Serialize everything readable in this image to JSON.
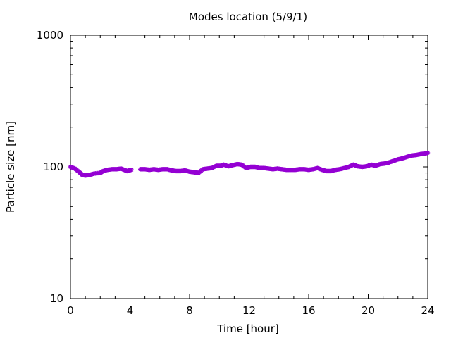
{
  "chart_data": {
    "type": "scatter",
    "title": "Modes location (5/9/1)",
    "xlabel": "Time [hour]",
    "ylabel": "Particle size [nm]",
    "xlim": [
      0,
      24
    ],
    "ylim": [
      10,
      1000
    ],
    "yscale": "log",
    "grid": false,
    "legend": "none",
    "x_ticks": [
      0,
      4,
      8,
      12,
      16,
      20,
      24
    ],
    "x_tick_labels": [
      "0",
      "4",
      "8",
      "12",
      "16",
      "20",
      "24"
    ],
    "y_ticks": [
      10,
      100,
      1000
    ],
    "y_tick_labels": [
      "10",
      "100",
      "1000"
    ],
    "series": [
      {
        "color": "#9400d3",
        "marker": "star",
        "x": [
          0.0,
          0.3,
          0.6,
          0.8,
          1.0,
          1.3,
          1.6,
          2.0,
          2.2,
          2.5,
          2.8,
          3.1,
          3.4,
          3.6,
          3.8,
          4.1,
          4.7,
          5.0,
          5.3,
          5.6,
          5.9,
          6.2,
          6.5,
          6.8,
          7.1,
          7.4,
          7.7,
          8.0,
          8.3,
          8.6,
          8.9,
          9.2,
          9.5,
          9.8,
          10.1,
          10.3,
          10.6,
          10.9,
          11.2,
          11.5,
          11.8,
          12.1,
          12.4,
          12.7,
          13.0,
          13.3,
          13.6,
          13.9,
          14.2,
          14.5,
          14.8,
          15.1,
          15.4,
          15.7,
          16.0,
          16.3,
          16.6,
          16.9,
          17.2,
          17.5,
          17.8,
          18.1,
          18.4,
          18.7,
          19.0,
          19.3,
          19.6,
          19.9,
          20.2,
          20.5,
          20.8,
          21.1,
          21.4,
          21.7,
          22.0,
          22.3,
          22.6,
          22.9,
          23.2,
          23.5,
          23.8,
          24.0
        ],
        "values": [
          100,
          97,
          91,
          87,
          86,
          87,
          89,
          90,
          93,
          95,
          96,
          96,
          97,
          95,
          93,
          95,
          96,
          96,
          95,
          96,
          95,
          96,
          96,
          94,
          93,
          93,
          94,
          92,
          91,
          90,
          96,
          97,
          98,
          102,
          102,
          104,
          101,
          103,
          105,
          104,
          98,
          100,
          100,
          98,
          98,
          97,
          96,
          97,
          96,
          95,
          95,
          95,
          96,
          96,
          95,
          96,
          98,
          95,
          93,
          93,
          95,
          96,
          98,
          100,
          104,
          101,
          100,
          101,
          104,
          102,
          105,
          106,
          108,
          111,
          114,
          116,
          119,
          122,
          123,
          125,
          126,
          128
        ]
      }
    ]
  }
}
